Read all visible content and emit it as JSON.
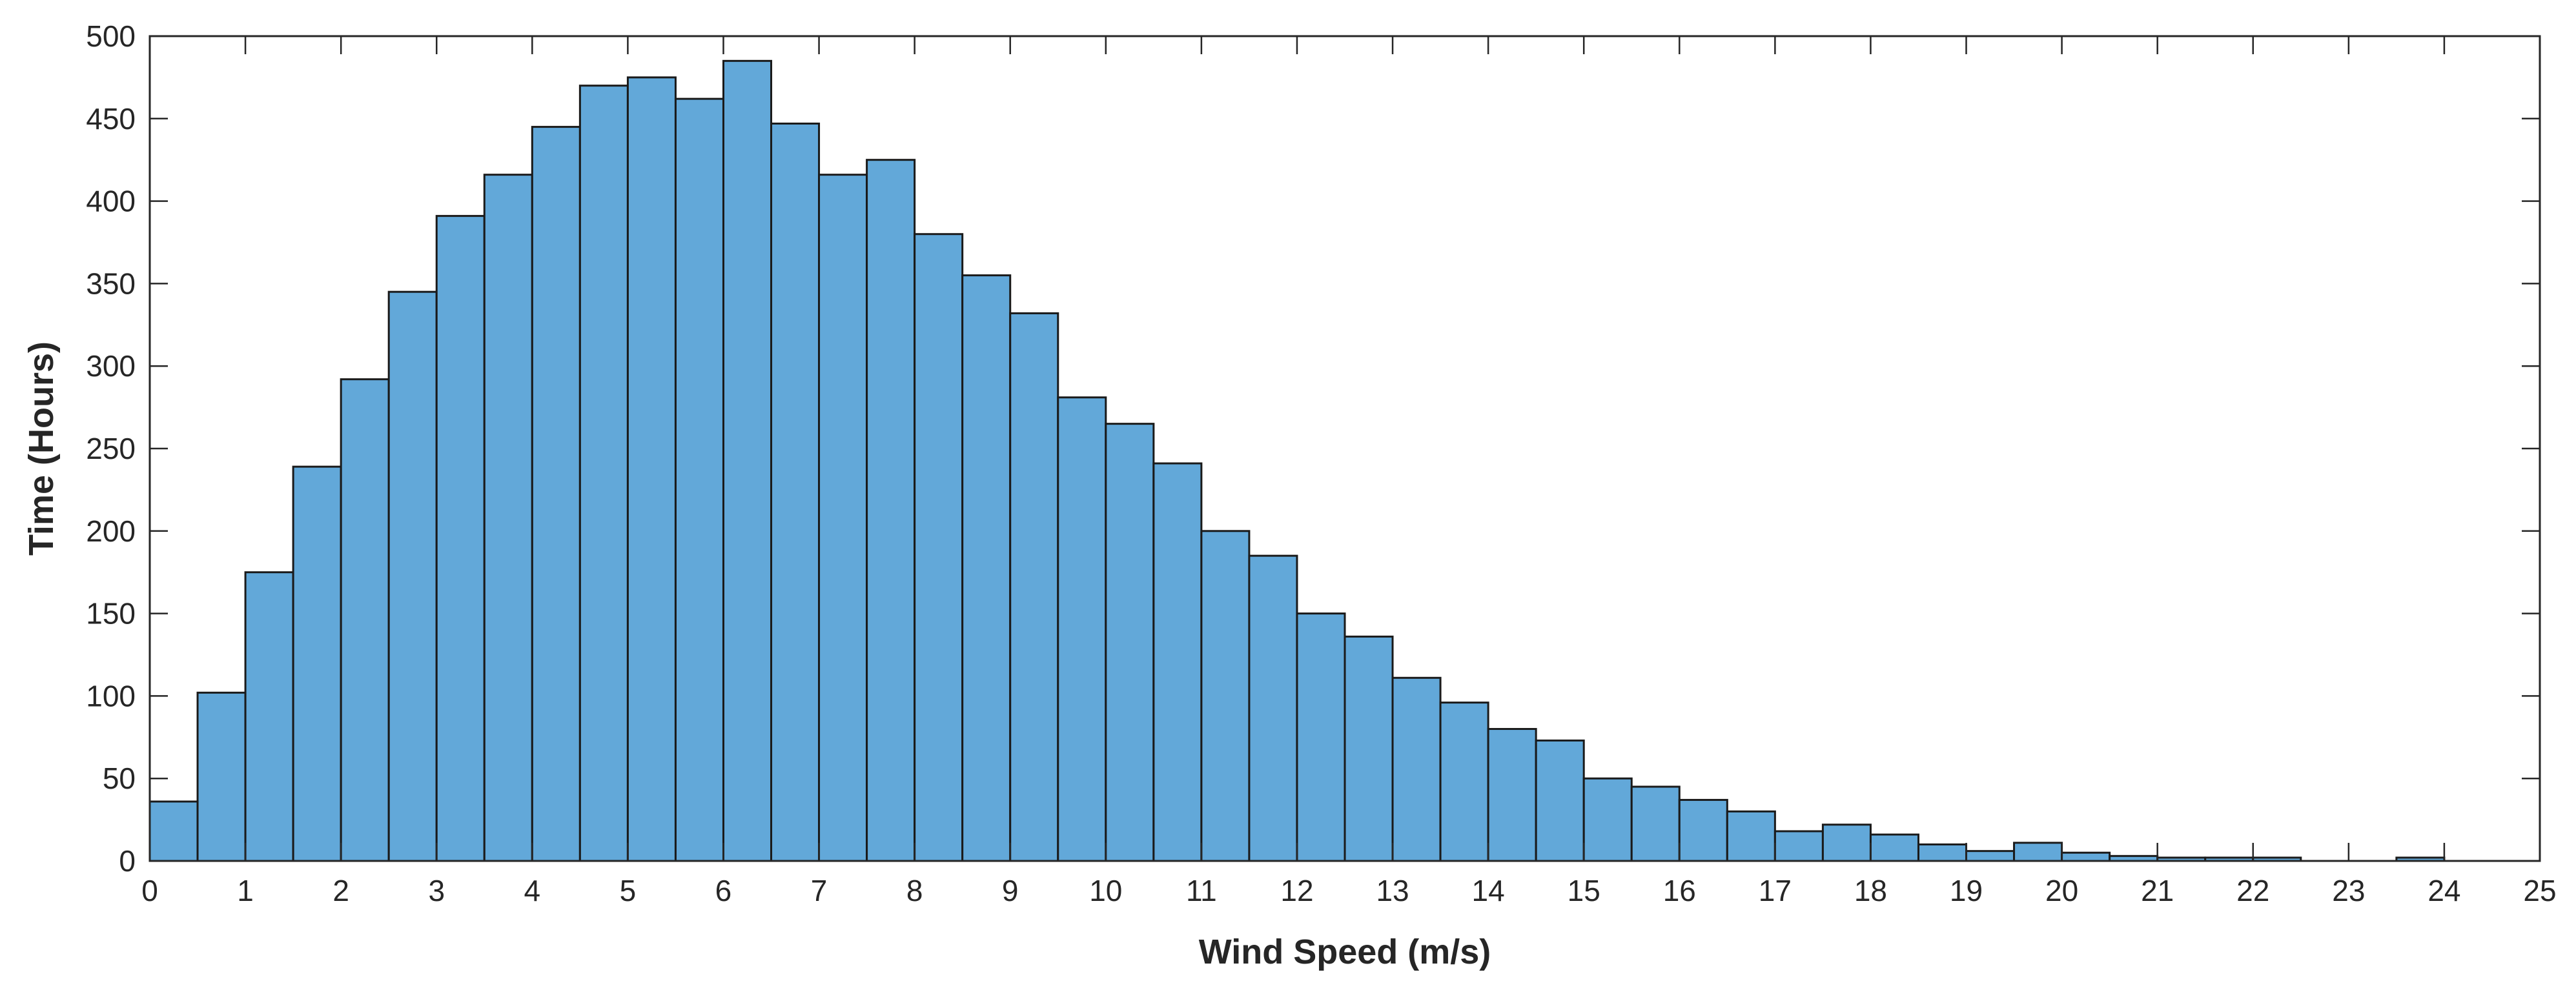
{
  "chart_data": {
    "type": "bar",
    "variant": "histogram",
    "title": "",
    "xlabel": "Wind Speed (m/s)",
    "ylabel": "Time (Hours)",
    "xlim": [
      0,
      25
    ],
    "ylim": [
      0,
      500
    ],
    "bin_width": 0.5,
    "xticks": [
      0,
      1,
      2,
      3,
      4,
      5,
      6,
      7,
      8,
      9,
      10,
      11,
      12,
      13,
      14,
      15,
      16,
      17,
      18,
      19,
      20,
      21,
      22,
      23,
      24,
      25
    ],
    "yticks": [
      0,
      50,
      100,
      150,
      200,
      250,
      300,
      350,
      400,
      450,
      500
    ],
    "grid": false,
    "box": true,
    "legend": "none",
    "colors": {
      "bar_fill": "#62a8d9",
      "bar_edge": "#1a1a1a",
      "axis": "#262626"
    },
    "series": [
      {
        "bin_edges_start": [
          0,
          0.5,
          1,
          1.5,
          2,
          2.5,
          3,
          3.5,
          4,
          4.5,
          5,
          5.5,
          6,
          6.5,
          7,
          7.5,
          8,
          8.5,
          9,
          9.5,
          10,
          10.5,
          11,
          11.5,
          12,
          12.5,
          13,
          13.5,
          14,
          14.5,
          15,
          15.5,
          16,
          16.5,
          17,
          17.5,
          18,
          18.5,
          19,
          19.5,
          20,
          20.5,
          21,
          21.5,
          22,
          22.5,
          23,
          23.5,
          24,
          24.5
        ],
        "values": [
          36,
          102,
          175,
          239,
          292,
          345,
          391,
          416,
          445,
          470,
          475,
          462,
          485,
          447,
          416,
          425,
          380,
          355,
          332,
          281,
          265,
          241,
          200,
          185,
          150,
          136,
          111,
          96,
          80,
          73,
          50,
          45,
          37,
          30,
          18,
          22,
          16,
          10,
          6,
          11,
          5,
          3,
          2,
          2,
          2,
          0,
          0,
          2,
          0,
          0
        ]
      }
    ]
  }
}
